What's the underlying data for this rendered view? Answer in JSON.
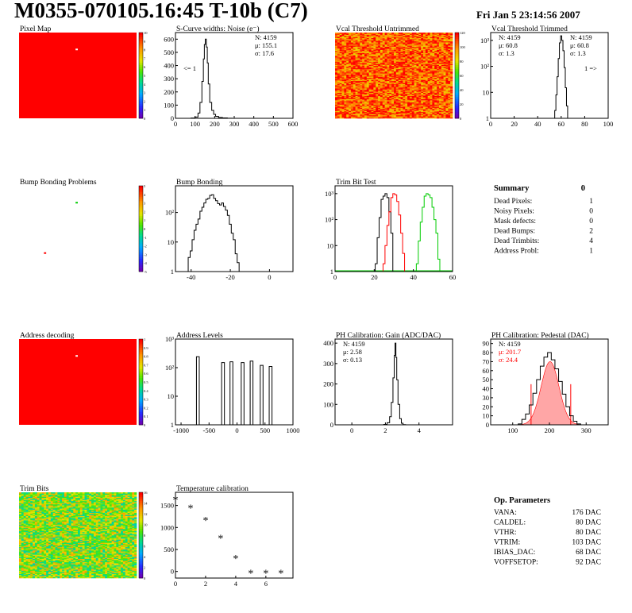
{
  "header": {
    "title": "M0355-070105.16:45 T-10b (C7)",
    "datetime": "Fri Jan  5 23:14:56 2007"
  },
  "colors": {
    "hist_line": "#000000",
    "red": "#ff0000",
    "green": "#00cc00",
    "map_bg": "#ff0000"
  },
  "chart_data": [
    {
      "id": "pixel-map",
      "type": "heatmap",
      "title": "Pixel Map",
      "xlim": [
        0,
        52
      ],
      "ylim": [
        0,
        80
      ],
      "xticks": [
        0,
        10,
        20,
        30,
        40,
        50
      ],
      "yticks": [
        0,
        10,
        20,
        30,
        40,
        50,
        60,
        70,
        80
      ],
      "fill": "uniform",
      "fill_value": 10,
      "special_points": [
        {
          "x": 25,
          "y": 64,
          "value": 0,
          "color": "#ffffff"
        }
      ],
      "zlim": [
        0,
        10
      ],
      "zticks": [
        0,
        1,
        2,
        3,
        4,
        5,
        6,
        7,
        8,
        9,
        10
      ]
    },
    {
      "id": "scurve-noise",
      "type": "histogram",
      "title": "S-Curve widths: Noise (e⁻)",
      "xlim": [
        0,
        600
      ],
      "ylim": [
        0,
        650
      ],
      "xticks": [
        0,
        100,
        200,
        300,
        400,
        500,
        600
      ],
      "yticks": [
        0,
        100,
        200,
        300,
        400,
        500,
        600
      ],
      "x": [
        90,
        110,
        120,
        130,
        140,
        145,
        150,
        155,
        160,
        165,
        170,
        180,
        190,
        200,
        210,
        230,
        250,
        280
      ],
      "y": [
        2,
        10,
        40,
        120,
        280,
        450,
        560,
        600,
        540,
        420,
        260,
        120,
        60,
        30,
        15,
        6,
        3,
        1
      ],
      "stats": [
        "N: 4159",
        "μ: 155.1",
        "σ: 17.6"
      ],
      "annotation": "<= 1"
    },
    {
      "id": "vcal-untrimmed",
      "type": "heatmap",
      "title": "Vcal Threshold Untrimmed",
      "xlim": [
        0,
        52
      ],
      "ylim": [
        0,
        80
      ],
      "xticks": [
        0,
        10,
        20,
        30,
        40,
        50
      ],
      "yticks": [
        0,
        10,
        20,
        30,
        40,
        50,
        60,
        70,
        80
      ],
      "fill": "noisy",
      "value_range": [
        85,
        128
      ],
      "zlim": [
        0,
        120
      ],
      "zticks": [
        0,
        20,
        40,
        60,
        80,
        100,
        120
      ]
    },
    {
      "id": "vcal-trimmed",
      "type": "histogram",
      "title": "Vcal Threshold Trimmed",
      "xlim": [
        0,
        100
      ],
      "ylim": [
        1,
        2000
      ],
      "log_y": true,
      "xticks": [
        0,
        20,
        40,
        60,
        80,
        100
      ],
      "yticks": [
        1,
        10,
        100,
        1000
      ],
      "ytick_labels": [
        "1",
        "10",
        "10²",
        "10³"
      ],
      "x": [
        55,
        56,
        57,
        58,
        59,
        60,
        61,
        62,
        63,
        64,
        65,
        66
      ],
      "y": [
        2,
        8,
        40,
        200,
        800,
        1500,
        1000,
        400,
        90,
        15,
        3,
        1
      ],
      "stats": [
        "N: 4159",
        "μ: 60.8",
        "σ:   1.3"
      ],
      "annotation": "1 =>"
    },
    {
      "id": "bump-bonding-problems",
      "type": "heatmap",
      "title": "Bump Bonding Problems",
      "xlim": [
        0,
        52
      ],
      "ylim": [
        0,
        80
      ],
      "xticks": [
        0,
        10,
        20,
        30,
        40,
        50
      ],
      "yticks": [
        0,
        10,
        20,
        30,
        40,
        50,
        60,
        70,
        80
      ],
      "fill": "empty",
      "special_points": [
        {
          "x": 25,
          "y": 64,
          "value": 1,
          "color": "#00cc00"
        },
        {
          "x": 11,
          "y": 17,
          "value": 3,
          "color": "#ff0000"
        }
      ],
      "zlim": [
        -5,
        5
      ],
      "zticks": [
        -5,
        -4,
        -3,
        -2,
        -1,
        0,
        1,
        2,
        3,
        4,
        5
      ]
    },
    {
      "id": "bump-bonding",
      "type": "histogram",
      "title": "Bump Bonding",
      "xlim": [
        -48,
        12
      ],
      "ylim": [
        1,
        800
      ],
      "log_y": true,
      "xticks": [
        -40,
        -20,
        0
      ],
      "yticks": [
        1,
        10,
        100
      ],
      "ytick_labels": [
        "1",
        "10",
        "10²"
      ],
      "x": [
        -42,
        -41,
        -40,
        -39,
        -38,
        -37,
        -36,
        -35,
        -34,
        -33,
        -32,
        -31,
        -30,
        -29,
        -28,
        -27,
        -26,
        -25,
        -24,
        -23,
        -22,
        -21,
        -20,
        -19,
        -18,
        -17,
        -16,
        -15,
        -1,
        5
      ],
      "y": [
        1,
        3,
        5,
        12,
        25,
        40,
        60,
        110,
        150,
        210,
        280,
        300,
        380,
        400,
        300,
        250,
        200,
        180,
        210,
        160,
        120,
        80,
        40,
        20,
        12,
        4,
        2,
        1,
        1,
        1
      ],
      "stats": []
    },
    {
      "id": "trim-bit-test",
      "type": "histogram",
      "title": "Trim Bit Test",
      "xlim": [
        0,
        60
      ],
      "ylim": [
        1,
        2000
      ],
      "log_y": true,
      "xticks": [
        0,
        20,
        40,
        60
      ],
      "yticks": [
        1,
        10,
        100,
        1000
      ],
      "ytick_labels": [
        "1",
        "10",
        "10²",
        "10³"
      ],
      "series": [
        {
          "name": "",
          "color": "#000000",
          "x": [
            21,
            22,
            23,
            24,
            25,
            26,
            27,
            28,
            29
          ],
          "y": [
            2,
            20,
            120,
            600,
            800,
            1000,
            700,
            200,
            30
          ]
        },
        {
          "name": "",
          "color": "#ff0000",
          "x": [
            25,
            26,
            27,
            28,
            29,
            30,
            31,
            32,
            33,
            34,
            35
          ],
          "y": [
            2,
            10,
            60,
            200,
            700,
            1000,
            900,
            500,
            150,
            30,
            5
          ]
        },
        {
          "name": "",
          "color": "#00cc00",
          "x": [
            42,
            43,
            44,
            45,
            46,
            47,
            48,
            49,
            50,
            51,
            52,
            53
          ],
          "y": [
            2,
            15,
            80,
            300,
            800,
            1000,
            900,
            700,
            300,
            100,
            30,
            3
          ]
        }
      ],
      "baseline_color": "#00cc00"
    },
    {
      "id": "summary",
      "type": "table",
      "title": "Summary",
      "total": "0",
      "rows": [
        {
          "label": "Dead Pixels:",
          "value": "1"
        },
        {
          "label": "Noisy Pixels:",
          "value": "0"
        },
        {
          "label": "Mask defects:",
          "value": "0"
        },
        {
          "label": "Dead Bumps:",
          "value": "2"
        },
        {
          "label": "Dead Trimbits:",
          "value": "4"
        },
        {
          "label": "Address Probl:",
          "value": "1"
        }
      ]
    },
    {
      "id": "address-decoding",
      "type": "heatmap",
      "title": "Address decoding",
      "xlim": [
        0,
        52
      ],
      "ylim": [
        0,
        80
      ],
      "xticks": [
        0,
        10,
        20,
        30,
        40,
        50
      ],
      "yticks": [
        0,
        10,
        20,
        30,
        40,
        50,
        60,
        70,
        80
      ],
      "fill": "uniform",
      "fill_value": 1,
      "special_points": [
        {
          "x": 25,
          "y": 64,
          "value": 0,
          "color": "#ffffff"
        }
      ],
      "zlim": [
        0,
        1
      ],
      "zticks": [
        0,
        0.1,
        0.2,
        0.3,
        0.4,
        0.5,
        0.6,
        0.7,
        0.8,
        0.9,
        1
      ]
    },
    {
      "id": "address-levels",
      "type": "histogram",
      "title": "Address Levels",
      "xlim": [
        -1100,
        1000
      ],
      "ylim": [
        1,
        1000
      ],
      "log_y": true,
      "xticks": [
        -1000,
        -500,
        0,
        500,
        1000
      ],
      "yticks": [
        1,
        10,
        100,
        1000
      ],
      "ytick_labels": [
        "1",
        "10",
        "10²",
        "10³"
      ],
      "peaks": [
        {
          "x": -700,
          "height": 240
        },
        {
          "x": -250,
          "height": 150
        },
        {
          "x": -100,
          "height": 160
        },
        {
          "x": 100,
          "height": 150
        },
        {
          "x": 260,
          "height": 170
        },
        {
          "x": 440,
          "height": 120
        },
        {
          "x": 600,
          "height": 110
        }
      ]
    },
    {
      "id": "ph-gain",
      "type": "histogram",
      "title": "PH Calibration: Gain (ADC/DAC)",
      "xlim": [
        -1,
        6
      ],
      "ylim": [
        0,
        420
      ],
      "xticks": [
        0,
        2,
        4
      ],
      "yticks": [
        0,
        100,
        200,
        300,
        400
      ],
      "x": [
        2.0,
        2.2,
        2.3,
        2.4,
        2.5,
        2.55,
        2.6,
        2.65,
        2.7,
        2.8,
        2.9,
        3.0,
        3.1
      ],
      "y": [
        2,
        10,
        40,
        110,
        230,
        340,
        400,
        330,
        220,
        100,
        30,
        8,
        1
      ],
      "stats": [
        "N: 4159",
        "μ: 2.58",
        "σ: 0.13"
      ]
    },
    {
      "id": "ph-pedestal",
      "type": "histogram",
      "title": "PH Calibration: Pedestal (DAC)",
      "xlim": [
        40,
        360
      ],
      "ylim": [
        0,
        95
      ],
      "xticks": [
        100,
        200,
        300
      ],
      "yticks": [
        0,
        10,
        20,
        30,
        40,
        50,
        60,
        70,
        80,
        90
      ],
      "x": [
        120,
        130,
        140,
        150,
        160,
        170,
        180,
        190,
        200,
        210,
        220,
        230,
        240,
        250,
        260,
        270,
        280
      ],
      "y": [
        1,
        6,
        12,
        22,
        35,
        50,
        65,
        75,
        80,
        72,
        62,
        48,
        34,
        20,
        10,
        4,
        1
      ],
      "fit": {
        "mu": 201.7,
        "sigma": 24.4,
        "amp": 70
      },
      "cut_lines": [
        150,
        258
      ],
      "stats": [
        "N: 4159"
      ],
      "fit_stats": [
        "μ: 201.7",
        "σ: 24.4"
      ]
    },
    {
      "id": "trim-bits",
      "type": "heatmap",
      "title": "Trim Bits",
      "xlim": [
        0,
        52
      ],
      "ylim": [
        0,
        80
      ],
      "xticks": [
        0,
        10,
        20,
        30,
        40,
        50
      ],
      "yticks": [
        0,
        10,
        20,
        30,
        40,
        50,
        60,
        70,
        80
      ],
      "fill": "noisy",
      "value_range": [
        6,
        13
      ],
      "zlim": [
        0,
        16
      ],
      "zticks": [
        0,
        2,
        4,
        6,
        8,
        10,
        12,
        14,
        16
      ]
    },
    {
      "id": "temperature-calibration",
      "type": "scatter",
      "title": "Temperature calibration",
      "xlim": [
        0,
        7.8
      ],
      "ylim": [
        -150,
        1800
      ],
      "xticks": [
        0,
        2,
        4,
        6
      ],
      "yticks": [
        0,
        500,
        1000,
        1500
      ],
      "x": [
        0,
        1,
        2,
        3,
        4,
        5,
        6,
        7
      ],
      "y": [
        1640,
        1450,
        1170,
        760,
        300,
        -30,
        -30,
        -30
      ],
      "marker": "*"
    },
    {
      "id": "op-parameters",
      "type": "table",
      "title": "Op. Parameters",
      "rows": [
        {
          "label": "VANA:",
          "value": "176 DAC"
        },
        {
          "label": "CALDEL:",
          "value": "80 DAC"
        },
        {
          "label": "VTHR:",
          "value": "80 DAC"
        },
        {
          "label": "VTRIM:",
          "value": "103 DAC"
        },
        {
          "label": "IBIAS_DAC:",
          "value": "68 DAC"
        },
        {
          "label": "VOFFSETOP:",
          "value": "92 DAC"
        }
      ]
    }
  ]
}
